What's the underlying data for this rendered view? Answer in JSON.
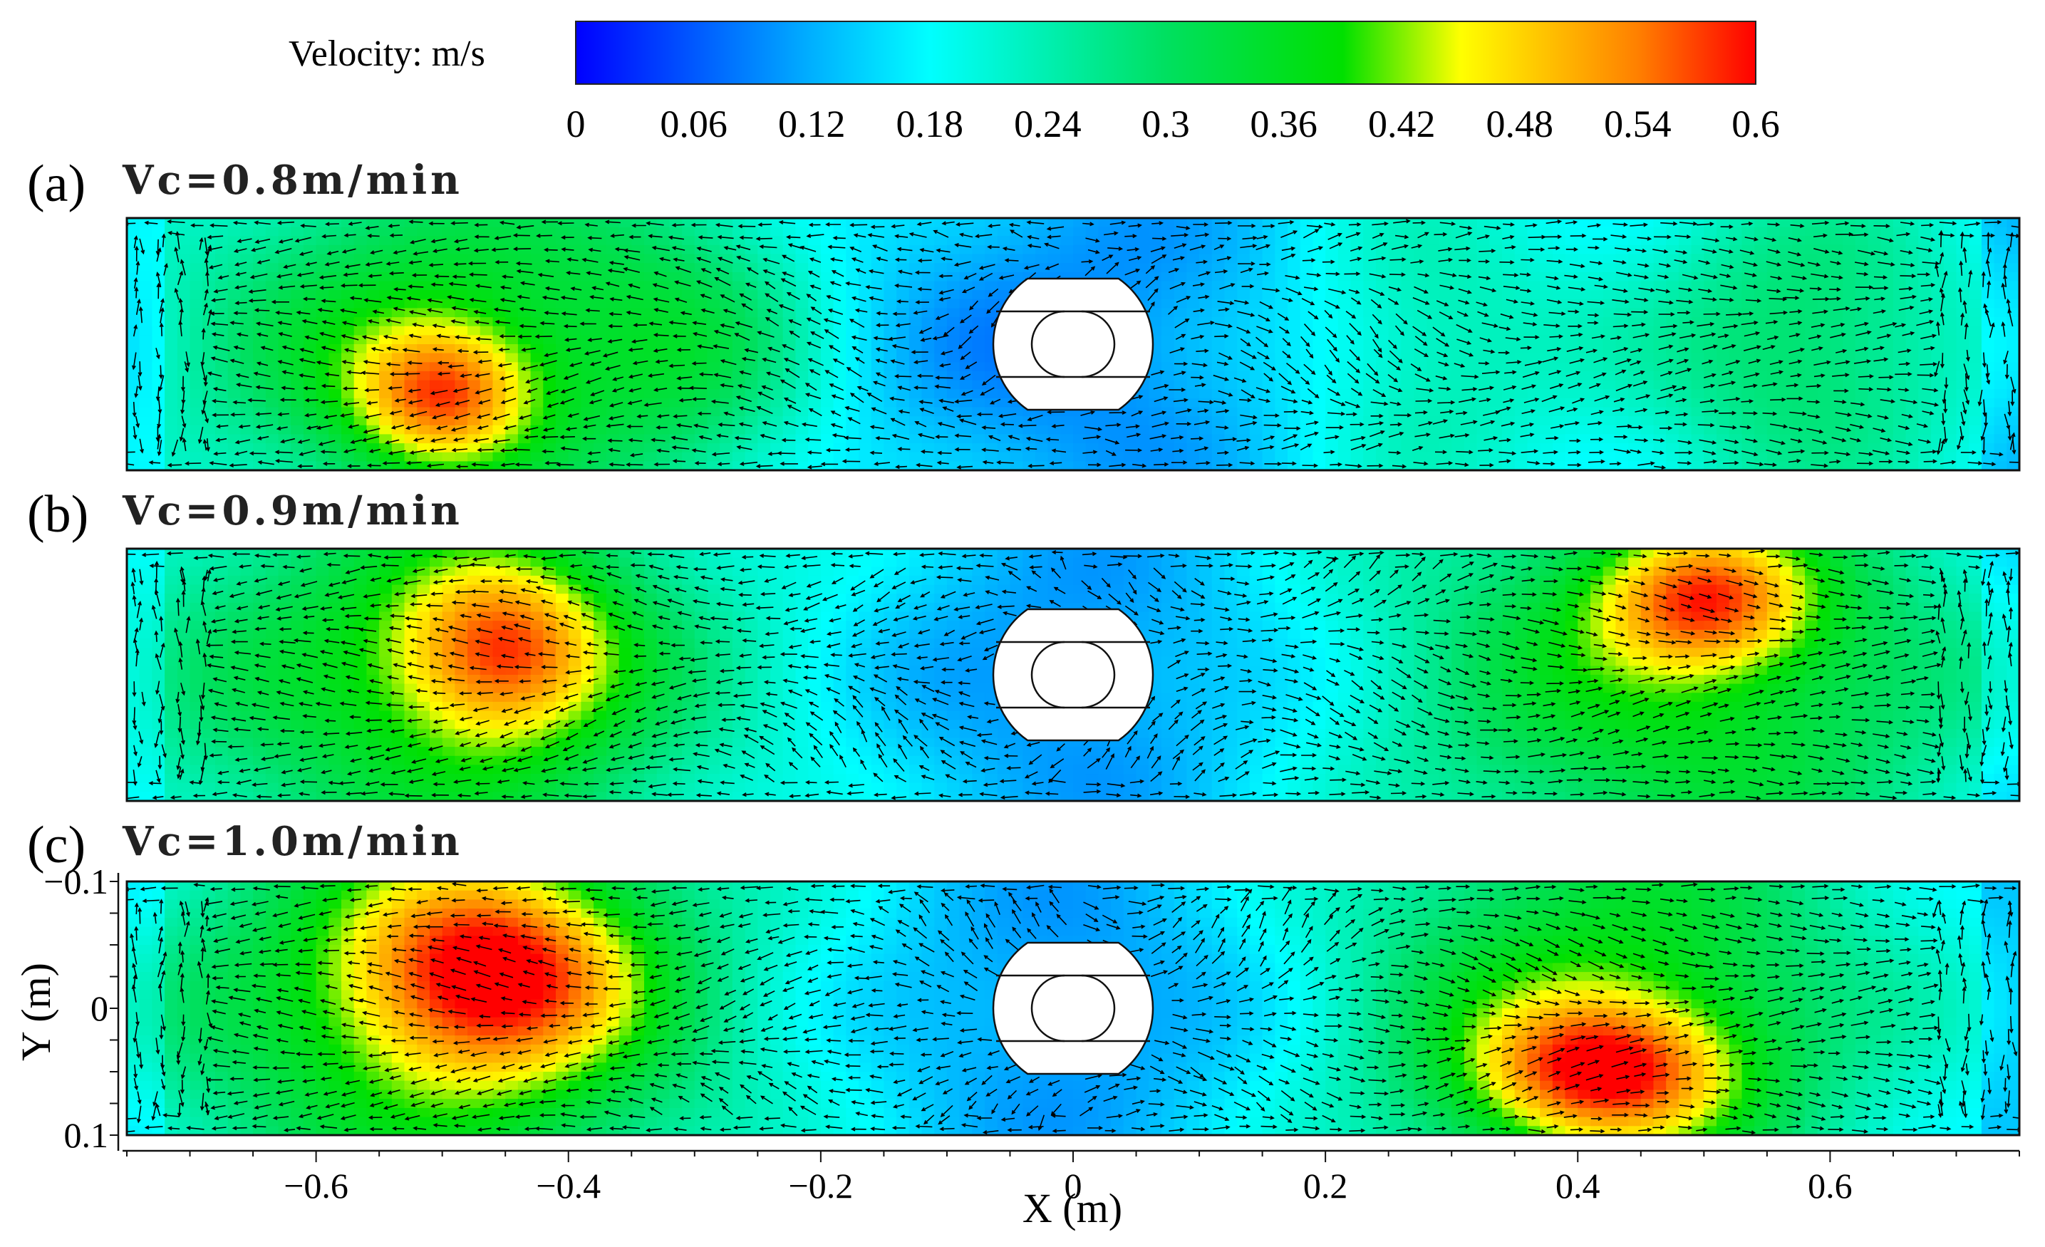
{
  "colorbar": {
    "label": "Velocity: m/s",
    "ticks": [
      "0",
      "0.06",
      "0.12",
      "0.18",
      "0.24",
      "0.3",
      "0.36",
      "0.42",
      "0.48",
      "0.54",
      "0.6"
    ],
    "range": [
      0,
      0.6
    ],
    "stops": [
      {
        "v": 0.0,
        "color": "#0000ff"
      },
      {
        "v": 0.12,
        "color": "#00b0ff"
      },
      {
        "v": 0.18,
        "color": "#00ffff"
      },
      {
        "v": 0.3,
        "color": "#00e060"
      },
      {
        "v": 0.39,
        "color": "#00e000"
      },
      {
        "v": 0.45,
        "color": "#ffff00"
      },
      {
        "v": 0.54,
        "color": "#ff8000"
      },
      {
        "v": 0.6,
        "color": "#ff0000"
      }
    ]
  },
  "chart_data": [
    {
      "type": "vector-field",
      "panel_label": "(a)",
      "title": "Vc=0.8m/min",
      "xlim": [
        -0.75,
        0.75
      ],
      "ylim": [
        -0.1,
        0.1
      ],
      "seed": 11,
      "blobs": [
        {
          "x": -0.52,
          "y": 0.0,
          "sx": 0.14,
          "sy": 0.12,
          "v": 0.36
        },
        {
          "x": -0.5,
          "y": 0.04,
          "sx": 0.05,
          "sy": 0.04,
          "v": 0.39
        },
        {
          "x": -0.3,
          "y": 0.0,
          "sx": 0.08,
          "sy": 0.1,
          "v": 0.28
        },
        {
          "x": 0.28,
          "y": 0.0,
          "sx": 0.08,
          "sy": 0.1,
          "v": 0.25
        },
        {
          "x": 0.58,
          "y": 0.0,
          "sx": 0.1,
          "sy": 0.1,
          "v": 0.3
        }
      ]
    },
    {
      "type": "vector-field",
      "panel_label": "(b)",
      "title": "Vc=0.9m/min",
      "xlim": [
        -0.75,
        0.75
      ],
      "ylim": [
        -0.1,
        0.1
      ],
      "seed": 23,
      "blobs": [
        {
          "x": -0.5,
          "y": 0.0,
          "sx": 0.18,
          "sy": 0.14,
          "v": 0.37
        },
        {
          "x": -0.45,
          "y": -0.02,
          "sx": 0.06,
          "sy": 0.05,
          "v": 0.39
        },
        {
          "x": 0.48,
          "y": 0.0,
          "sx": 0.18,
          "sy": 0.14,
          "v": 0.37
        },
        {
          "x": 0.5,
          "y": -0.06,
          "sx": 0.06,
          "sy": 0.04,
          "v": 0.4
        }
      ]
    },
    {
      "type": "vector-field",
      "panel_label": "(c)",
      "title": "Vc=1.0m/min",
      "xlim": [
        -0.75,
        0.75
      ],
      "ylim": [
        -0.1,
        0.1
      ],
      "xlabel": "X (m)",
      "ylabel": "Y (m)",
      "xticks": [
        -0.6,
        -0.4,
        -0.2,
        0,
        0.2,
        0.4,
        0.6
      ],
      "xtick_labels": [
        "−0.6",
        "−0.4",
        "−0.2",
        "0",
        "0.2",
        "0.4",
        "0.6"
      ],
      "yticks": [
        -0.1,
        0,
        0.1
      ],
      "ytick_labels": [
        "−0.1",
        "0",
        "0.1"
      ],
      "seed": 37,
      "blobs": [
        {
          "x": -0.5,
          "y": 0.0,
          "sx": 0.18,
          "sy": 0.14,
          "v": 0.38
        },
        {
          "x": -0.46,
          "y": -0.03,
          "sx": 0.08,
          "sy": 0.06,
          "v": 0.43
        },
        {
          "x": 0.42,
          "y": 0.0,
          "sx": 0.16,
          "sy": 0.14,
          "v": 0.38
        },
        {
          "x": 0.42,
          "y": 0.05,
          "sx": 0.07,
          "sy": 0.04,
          "v": 0.43
        }
      ]
    }
  ]
}
